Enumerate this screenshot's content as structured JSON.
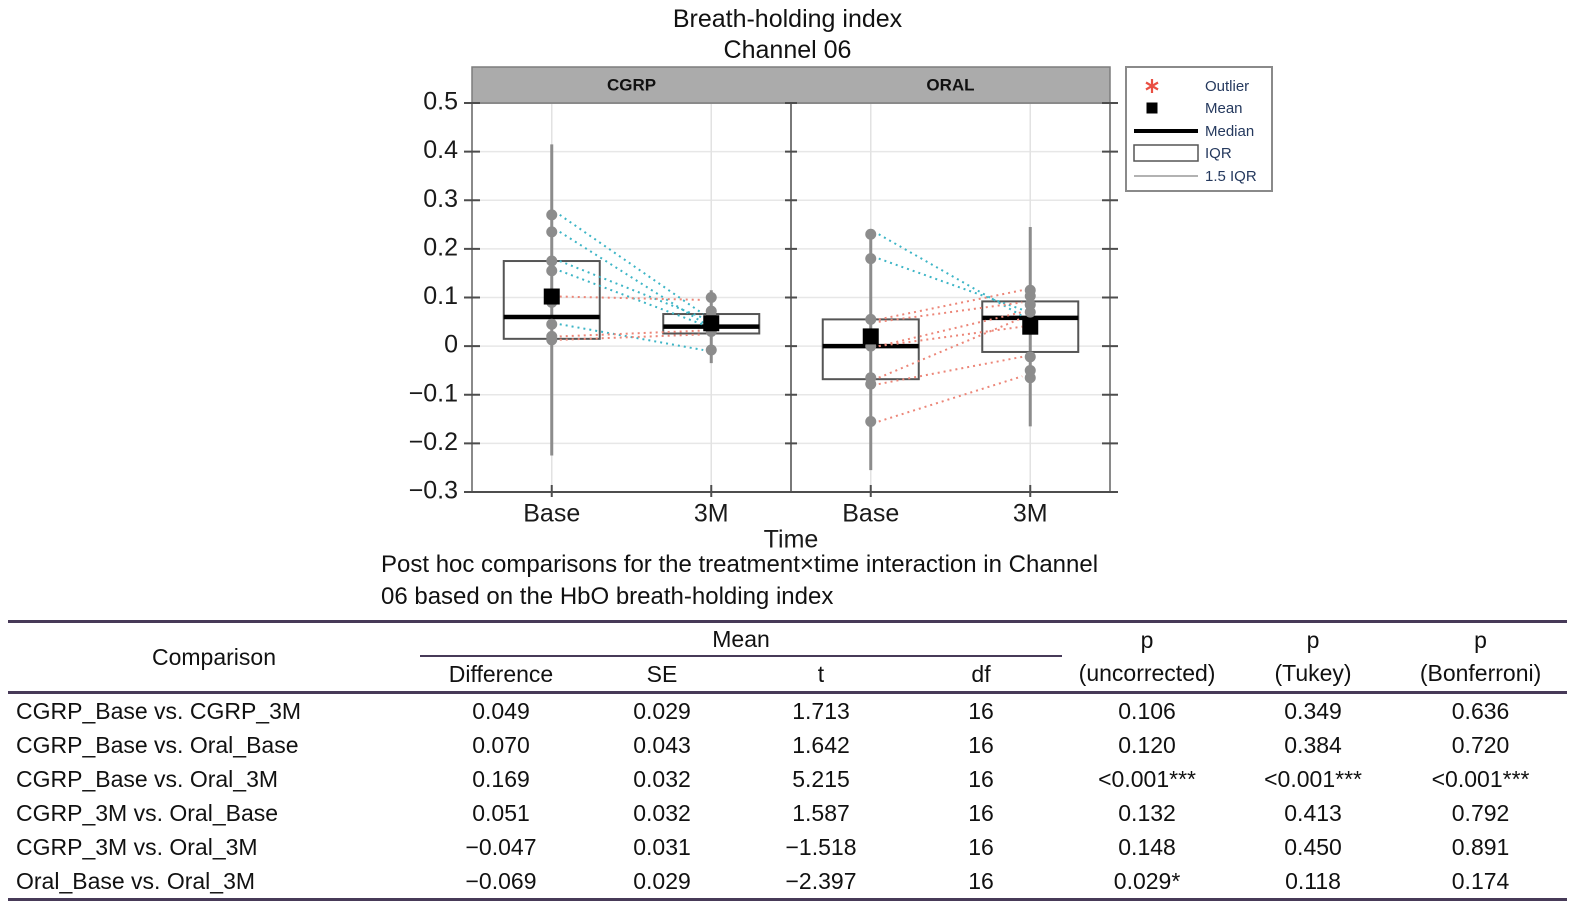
{
  "title": {
    "line1": "Breath-holding index",
    "line2": "Channel 06"
  },
  "chart_data": {
    "type": "boxplot",
    "title": "Breath-holding index Channel 06",
    "xlabel": "Time",
    "categories": [
      "Base",
      "3M"
    ],
    "ylim": [
      -0.3,
      0.5
    ],
    "grid": true,
    "yticks": [
      {
        "v": 0.5,
        "label": "0.5"
      },
      {
        "v": 0.4,
        "label": "0.4"
      },
      {
        "v": 0.3,
        "label": "0.3"
      },
      {
        "v": 0.2,
        "label": "0.2"
      },
      {
        "v": 0.1,
        "label": "0.1"
      },
      {
        "v": 0.0,
        "label": "0"
      },
      {
        "v": -0.1,
        "label": "−0.1"
      },
      {
        "v": -0.2,
        "label": "−0.2"
      },
      {
        "v": -0.3,
        "label": "−0.3"
      }
    ],
    "panels": [
      {
        "label": "CGRP",
        "groups": [
          {
            "time": "Base",
            "whisker_low": -0.225,
            "q1": 0.015,
            "median": 0.06,
            "q3": 0.175,
            "whisker_high": 0.415,
            "mean": 0.102,
            "points": [
              0.27,
              0.235,
              0.175,
              0.155,
              0.09,
              0.045,
              0.02,
              0.013
            ]
          },
          {
            "time": "3M",
            "whisker_low": -0.035,
            "q1": 0.026,
            "median": 0.04,
            "q3": 0.066,
            "whisker_high": 0.115,
            "mean": 0.047,
            "points": [
              0.1,
              0.072,
              0.06,
              0.048,
              0.03,
              -0.008
            ]
          }
        ],
        "pairs": [
          {
            "from": 0.27,
            "to": 0.066,
            "dir": "decrease"
          },
          {
            "from": 0.235,
            "to": 0.048,
            "dir": "decrease"
          },
          {
            "from": 0.175,
            "to": 0.058,
            "dir": "decrease"
          },
          {
            "from": 0.155,
            "to": 0.044,
            "dir": "decrease"
          },
          {
            "from": 0.102,
            "to": 0.095,
            "dir": "increase"
          },
          {
            "from": 0.045,
            "to": -0.008,
            "dir": "decrease"
          },
          {
            "from": 0.02,
            "to": 0.032,
            "dir": "increase"
          },
          {
            "from": 0.013,
            "to": 0.024,
            "dir": "increase"
          }
        ]
      },
      {
        "label": "ORAL",
        "groups": [
          {
            "time": "Base",
            "whisker_low": -0.255,
            "q1": -0.068,
            "median": 0.0,
            "q3": 0.055,
            "whisker_high": 0.235,
            "mean": 0.02,
            "points": [
              0.23,
              0.18,
              0.055,
              0.0,
              -0.065,
              -0.078,
              -0.155
            ]
          },
          {
            "time": "3M",
            "whisker_low": -0.165,
            "q1": -0.012,
            "median": 0.058,
            "q3": 0.092,
            "whisker_high": 0.245,
            "mean": 0.04,
            "points": [
              0.115,
              0.103,
              0.085,
              0.07,
              0.04,
              -0.022,
              -0.05,
              -0.065
            ]
          }
        ],
        "pairs": [
          {
            "from": 0.23,
            "to": 0.062,
            "dir": "decrease"
          },
          {
            "from": 0.18,
            "to": 0.075,
            "dir": "decrease"
          },
          {
            "from": 0.055,
            "to": 0.115,
            "dir": "increase"
          },
          {
            "from": 0.05,
            "to": 0.09,
            "dir": "increase"
          },
          {
            "from": 0.0,
            "to": 0.07,
            "dir": "increase"
          },
          {
            "from": 0.0,
            "to": 0.04,
            "dir": "increase"
          },
          {
            "from": -0.065,
            "to": 0.058,
            "dir": "increase"
          },
          {
            "from": -0.078,
            "to": -0.022,
            "dir": "increase"
          },
          {
            "from": -0.155,
            "to": -0.062,
            "dir": "increase"
          }
        ]
      }
    ],
    "legend": [
      {
        "label": "Outlier",
        "marker": "asterisk",
        "color": "#e94f43"
      },
      {
        "label": "Mean",
        "marker": "filled-square",
        "color": "#000000"
      },
      {
        "label": "Median",
        "marker": "thick-line",
        "color": "#000000"
      },
      {
        "label": "IQR",
        "marker": "box-outline",
        "color": "#555555"
      },
      {
        "label": "1.5 IQR",
        "marker": "thin-line",
        "color": "#999999"
      }
    ],
    "colors": {
      "pair_increase": "#ec8678",
      "pair_decrease": "#3db5c6",
      "point": "#8c8c8c",
      "whisker": "#8c8c8c",
      "box_stroke": "#555555",
      "panel_strip": "#ababab",
      "legend_text": "#25395e",
      "grid": "#e7e7e7",
      "axis": "#4d4d4d"
    }
  },
  "caption": {
    "line1": "Post hoc comparisons for the treatment×time interaction in Channel",
    "line2": "06 based on the HbO breath-holding index"
  },
  "table": {
    "headers": {
      "comparison": "Comparison",
      "mean_group": "Mean",
      "difference": "Difference",
      "se": "SE",
      "t": "t",
      "df": "df",
      "p_uncorrected_1": "p",
      "p_uncorrected_2": "(uncorrected)",
      "p_tukey_1": "p",
      "p_tukey_2": "(Tukey)",
      "p_bonferroni_1": "p",
      "p_bonferroni_2": "(Bonferroni)"
    },
    "rows": [
      {
        "comparison": "CGRP_Base vs. CGRP_3M",
        "difference": "0.049",
        "se": "0.029",
        "t": "1.713",
        "df": "16",
        "p_uncorrected": "0.106",
        "p_tukey": "0.349",
        "p_bonferroni": "0.636"
      },
      {
        "comparison": "CGRP_Base vs. Oral_Base",
        "difference": "0.070",
        "se": "0.043",
        "t": "1.642",
        "df": "16",
        "p_uncorrected": "0.120",
        "p_tukey": "0.384",
        "p_bonferroni": "0.720"
      },
      {
        "comparison": "CGRP_Base vs. Oral_3M",
        "difference": "0.169",
        "se": "0.032",
        "t": "5.215",
        "df": "16",
        "p_uncorrected": "<0.001***",
        "p_tukey": "<0.001***",
        "p_bonferroni": "<0.001***"
      },
      {
        "comparison": "CGRP_3M vs. Oral_Base",
        "difference": "0.051",
        "se": "0.032",
        "t": "1.587",
        "df": "16",
        "p_uncorrected": "0.132",
        "p_tukey": "0.413",
        "p_bonferroni": "0.792"
      },
      {
        "comparison": "CGRP_3M vs. Oral_3M",
        "difference": "−0.047",
        "se": "0.031",
        "t": "−1.518",
        "df": "16",
        "p_uncorrected": "0.148",
        "p_tukey": "0.450",
        "p_bonferroni": "0.891"
      },
      {
        "comparison": "Oral_Base vs. Oral_3M",
        "difference": "−0.069",
        "se": "0.029",
        "t": "−2.397",
        "df": "16",
        "p_uncorrected": "0.029*",
        "p_tukey": "0.118",
        "p_bonferroni": "0.174"
      }
    ]
  }
}
